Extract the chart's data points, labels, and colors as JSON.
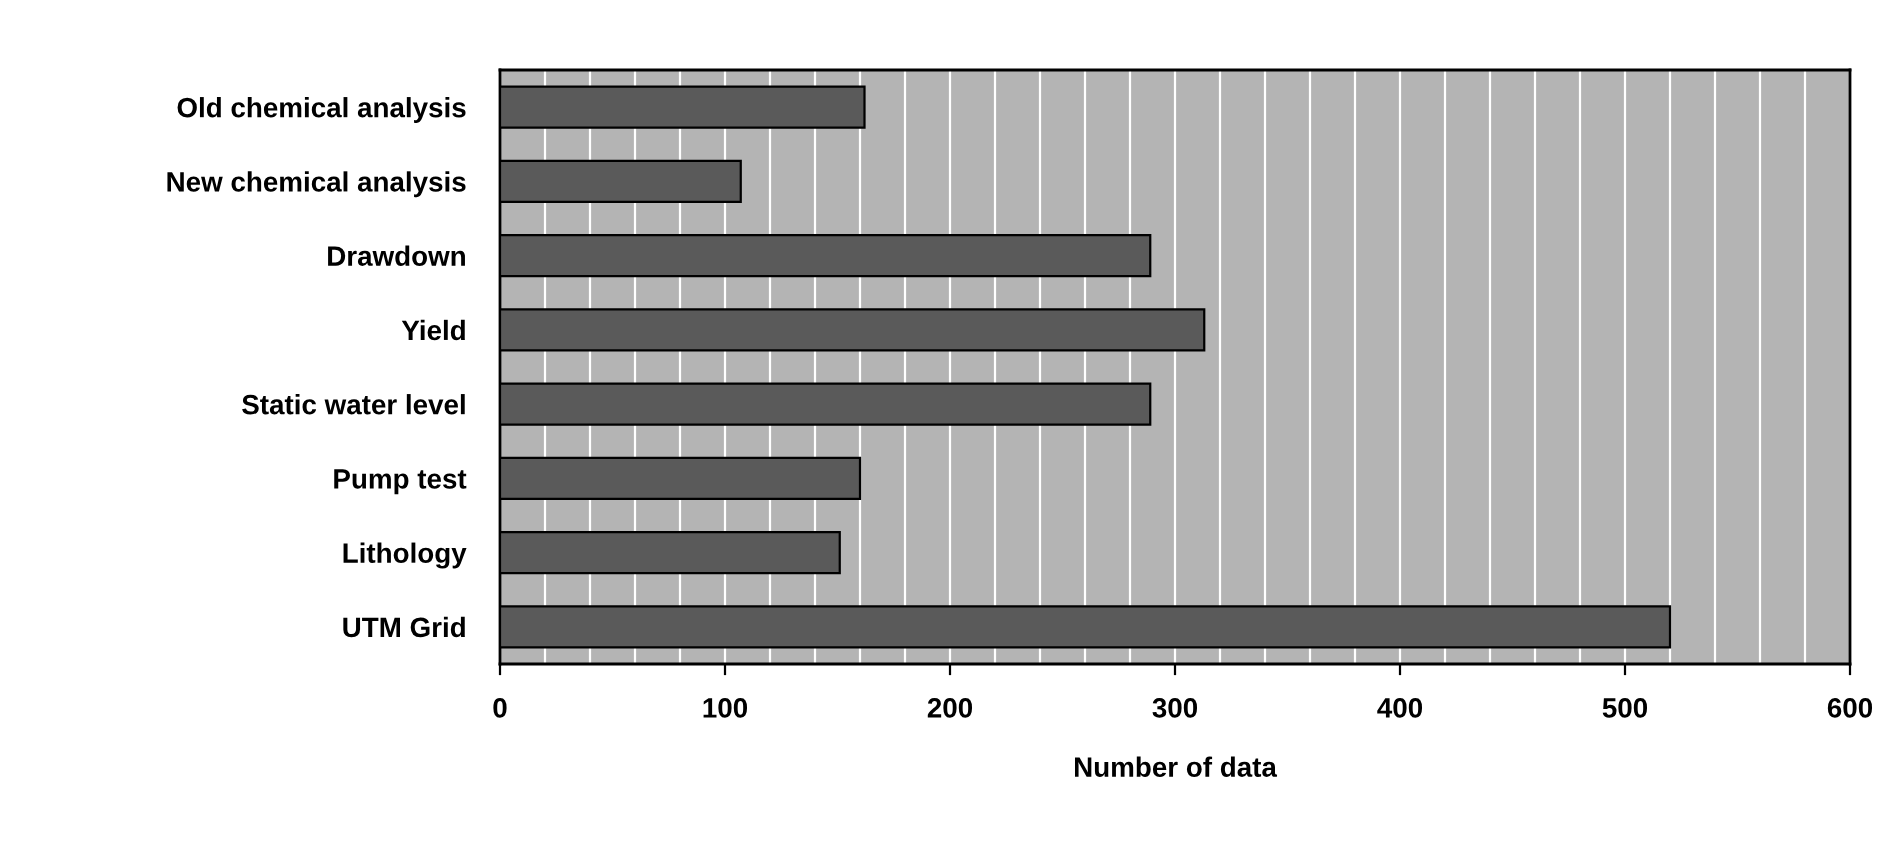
{
  "chart_data": {
    "type": "bar",
    "orientation": "horizontal",
    "xlabel": "Number of data",
    "categories": [
      "Old chemical analysis",
      "New chemical analysis",
      "Drawdown",
      "Yield",
      "Static water level",
      "Pump test",
      "Lithology",
      "UTM Grid"
    ],
    "values": [
      162,
      107,
      289,
      313,
      289,
      160,
      151,
      520
    ],
    "color": "#5a5a5a",
    "xlim": [
      0,
      600
    ],
    "xticks": [
      0,
      100,
      200,
      300,
      400,
      500,
      600
    ],
    "grid": "x"
  }
}
